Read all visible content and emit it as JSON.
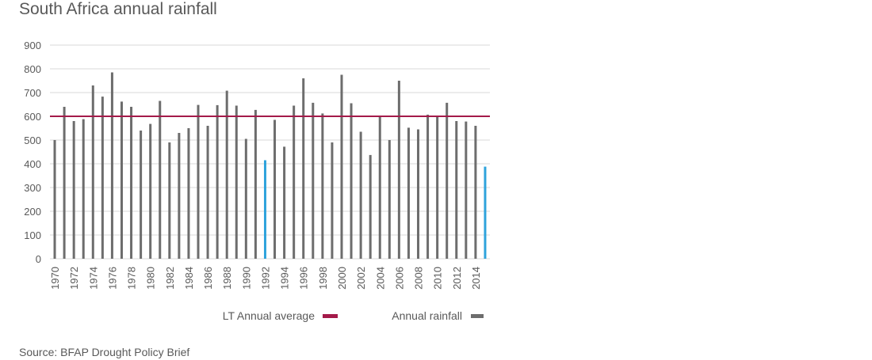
{
  "title": "South Africa annual rainfall",
  "source": "Source: BFAP Drought Policy Brief",
  "colors": {
    "bar": "#6d6d6d",
    "highlight": "#2ea3dc",
    "average": "#a41a4a",
    "grid": "#d9d9d9",
    "text": "#595959"
  },
  "chart_data": {
    "type": "bar",
    "title": "South Africa annual rainfall",
    "xlabel": "",
    "ylabel": "",
    "ylim": [
      0,
      900
    ],
    "yticks": [
      0,
      100,
      200,
      300,
      400,
      500,
      600,
      700,
      800,
      900
    ],
    "grid": true,
    "legend_position": "bottom",
    "categories": [
      1970,
      1971,
      1972,
      1973,
      1974,
      1975,
      1976,
      1977,
      1978,
      1979,
      1980,
      1981,
      1982,
      1983,
      1984,
      1985,
      1986,
      1987,
      1988,
      1989,
      1990,
      1991,
      1992,
      1993,
      1994,
      1995,
      1996,
      1997,
      1998,
      1999,
      2000,
      2001,
      2002,
      2003,
      2004,
      2005,
      2006,
      2007,
      2008,
      2009,
      2010,
      2011,
      2012,
      2013,
      2014,
      2015
    ],
    "xtick_labels": [
      "1970",
      "1972",
      "1974",
      "1976",
      "1978",
      "1980",
      "1982",
      "1984",
      "1986",
      "1988",
      "1990",
      "1992",
      "1994",
      "1996",
      "1998",
      "2000",
      "2002",
      "2004",
      "2006",
      "2008",
      "2010",
      "2012",
      "2014"
    ],
    "series": [
      {
        "name": "Annual rainfall",
        "type": "bar",
        "values": [
          500,
          640,
          580,
          588,
          730,
          683,
          785,
          662,
          640,
          540,
          568,
          665,
          490,
          530,
          550,
          648,
          560,
          647,
          708,
          645,
          505,
          627,
          415,
          585,
          472,
          645,
          760,
          657,
          612,
          490,
          775,
          655,
          535,
          437,
          597,
          500,
          750,
          552,
          545,
          607,
          597,
          657,
          580,
          578,
          560,
          388
        ],
        "highlighted": [
          1992,
          2015
        ]
      },
      {
        "name": "LT Annual average",
        "type": "line",
        "value": 600
      }
    ]
  },
  "legend": [
    {
      "label": "LT Annual average",
      "color": "#a41a4a"
    },
    {
      "label": "Annual rainfall",
      "color": "#6d6d6d"
    }
  ]
}
